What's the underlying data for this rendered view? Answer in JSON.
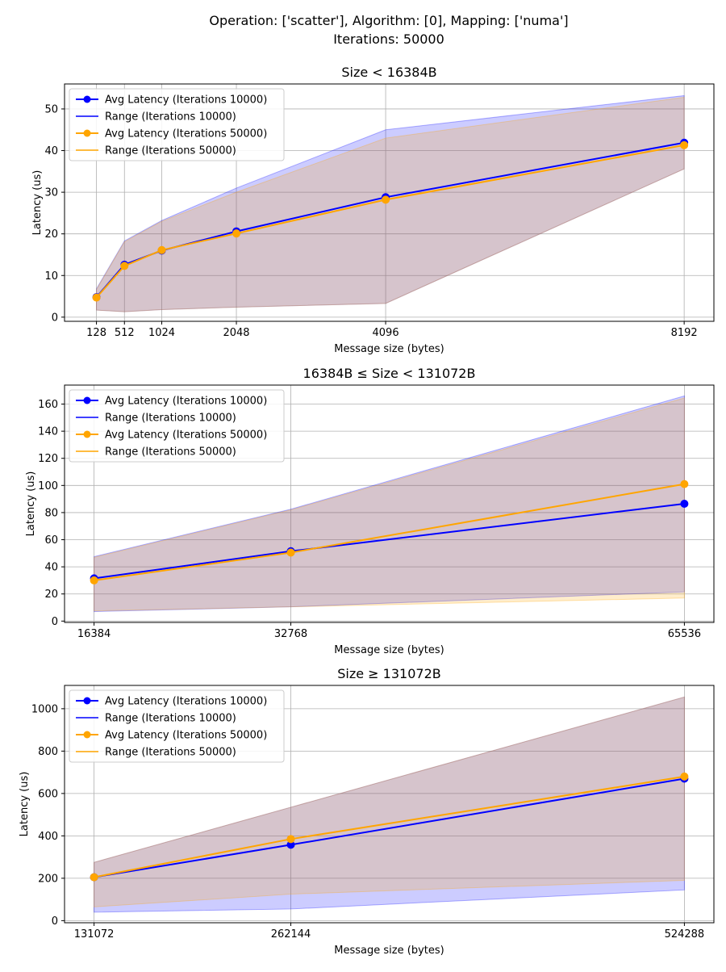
{
  "figure": {
    "title_line1": "Operation: ['scatter'], Algorithm: [0], Mapping: ['numa']",
    "title_line2": "Iterations: 50000"
  },
  "colors": {
    "series_10000": "#0000ff",
    "series_50000": "#ffa500",
    "grid": "#b0b0b0"
  },
  "chart_data": [
    {
      "type": "line",
      "title": "Size < 16384B",
      "xlabel": "Message size (bytes)",
      "ylabel": "Latency (us)",
      "x": [
        128,
        512,
        1024,
        2048,
        4096,
        8192
      ],
      "xticks": [
        128,
        512,
        1024,
        2048,
        4096,
        8192
      ],
      "xlim": [
        -310,
        8600
      ],
      "yticks": [
        0,
        10,
        20,
        30,
        40,
        50
      ],
      "ylim": [
        -1,
        56
      ],
      "grid": true,
      "legend": "top-left",
      "series": [
        {
          "name": "Avg Latency (Iterations 10000)",
          "range_name": "Range (Iterations 10000)",
          "color_key": "series_10000",
          "values": [
            4.8,
            12.6,
            16.0,
            20.6,
            28.8,
            41.9
          ],
          "min": [
            1.7,
            1.3,
            1.8,
            2.4,
            3.3,
            35.6
          ],
          "max": [
            6.8,
            18.3,
            23.2,
            31.0,
            45.0,
            53.2
          ]
        },
        {
          "name": "Avg Latency (Iterations 50000)",
          "range_name": "Range (Iterations 50000)",
          "color_key": "series_50000",
          "values": [
            4.7,
            12.3,
            16.1,
            20.1,
            28.2,
            41.3
          ],
          "min": [
            1.7,
            1.3,
            1.8,
            2.4,
            3.3,
            35.6
          ],
          "max": [
            6.6,
            18.1,
            23.0,
            30.0,
            43.0,
            52.8
          ]
        }
      ]
    },
    {
      "type": "line",
      "title": "16384B ≤ Size < 131072B",
      "xlabel": "Message size (bytes)",
      "ylabel": "Latency (us)",
      "x": [
        16384,
        32768,
        65536
      ],
      "xticks": [
        16384,
        32768,
        65536
      ],
      "xlim": [
        13926,
        67994
      ],
      "yticks": [
        0,
        20,
        40,
        60,
        80,
        100,
        120,
        140,
        160
      ],
      "ylim": [
        -1,
        174
      ],
      "grid": true,
      "legend": "top-left",
      "series": [
        {
          "name": "Avg Latency (Iterations 10000)",
          "range_name": "Range (Iterations 10000)",
          "color_key": "series_10000",
          "values": [
            31.5,
            51.5,
            86.5
          ],
          "min": [
            7.0,
            10.5,
            21.5
          ],
          "max": [
            47.5,
            82.5,
            166.0
          ]
        },
        {
          "name": "Avg Latency (Iterations 50000)",
          "range_name": "Range (Iterations 50000)",
          "color_key": "series_50000",
          "values": [
            30.0,
            50.5,
            101.0
          ],
          "min": [
            7.5,
            10.5,
            17.0
          ],
          "max": [
            47.0,
            82.0,
            164.5
          ]
        }
      ]
    },
    {
      "type": "line",
      "title": "Size ≥ 131072B",
      "xlabel": "Message size (bytes)",
      "ylabel": "Latency (us)",
      "x": [
        131072,
        262144,
        524288
      ],
      "xticks": [
        131072,
        262144,
        524288
      ],
      "xlim": [
        111411,
        543949
      ],
      "yticks": [
        0,
        200,
        400,
        600,
        800,
        1000
      ],
      "ylim": [
        -10,
        1110
      ],
      "grid": true,
      "legend": "top-left",
      "series": [
        {
          "name": "Avg Latency (Iterations 10000)",
          "range_name": "Range (Iterations 10000)",
          "color_key": "series_10000",
          "values": [
            205,
            358,
            670
          ],
          "min": [
            40,
            55,
            145
          ],
          "max": [
            275,
            535,
            1055
          ]
        },
        {
          "name": "Avg Latency (Iterations 50000)",
          "range_name": "Range (Iterations 50000)",
          "color_key": "series_50000",
          "values": [
            205,
            385,
            680
          ],
          "min": [
            65,
            125,
            190
          ],
          "max": [
            275,
            535,
            1055
          ]
        }
      ]
    }
  ]
}
